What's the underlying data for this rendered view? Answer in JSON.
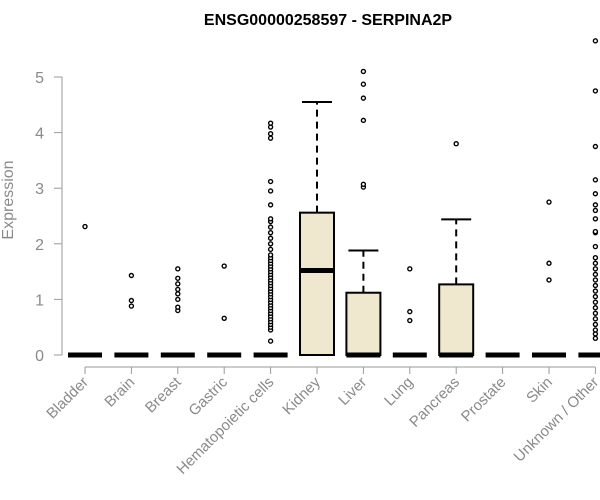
{
  "chart_data": {
    "type": "box",
    "title": "ENSG00000258597 - SERPINA2P",
    "ylabel": "Expression",
    "xlabel": "",
    "ylim": [
      0,
      5.7
    ],
    "yticks": [
      0,
      1,
      2,
      3,
      4,
      5
    ],
    "box_fill": "#efe8cf",
    "categories": [
      "Bladder",
      "Brain",
      "Breast",
      "Gastric",
      "Hematopoietic cells",
      "Kidney",
      "Liver",
      "Lung",
      "Pancreas",
      "Prostate",
      "Skin",
      "Unknown / Other"
    ],
    "boxes": [
      {
        "min": 0,
        "q1": 0,
        "median": 0,
        "q3": 0,
        "max": 0,
        "outliers": [
          2.31
        ]
      },
      {
        "min": 0,
        "q1": 0,
        "median": 0,
        "q3": 0,
        "max": 0,
        "outliers": [
          0.88,
          0.98,
          1.43
        ]
      },
      {
        "min": 0,
        "q1": 0,
        "median": 0,
        "q3": 0,
        "max": 0,
        "outliers": [
          0.8,
          0.86,
          1.0,
          1.1,
          1.18,
          1.28,
          1.38,
          1.55
        ]
      },
      {
        "min": 0,
        "q1": 0,
        "median": 0,
        "q3": 0,
        "max": 0,
        "outliers": [
          0.66,
          1.6
        ]
      },
      {
        "min": 0,
        "q1": 0,
        "median": 0,
        "q3": 0,
        "max": 0,
        "outliers": [
          0.25,
          0.45,
          0.5,
          0.55,
          0.6,
          0.65,
          0.7,
          0.75,
          0.8,
          0.85,
          0.9,
          0.95,
          1.0,
          1.05,
          1.1,
          1.15,
          1.2,
          1.25,
          1.3,
          1.35,
          1.4,
          1.45,
          1.5,
          1.55,
          1.6,
          1.65,
          1.7,
          1.75,
          1.8,
          1.9,
          2.0,
          2.1,
          2.2,
          2.3,
          2.4,
          2.45,
          2.7,
          2.95,
          3.12,
          3.9,
          3.98,
          4.1,
          4.17
        ]
      },
      {
        "min": 0,
        "q1": 0,
        "median": 1.52,
        "q3": 2.56,
        "max": 4.55,
        "outliers": []
      },
      {
        "min": 0,
        "q1": 0,
        "median": 0,
        "q3": 1.12,
        "max": 1.88,
        "outliers": [
          3.02,
          3.07,
          4.22,
          4.62,
          4.87,
          5.1
        ]
      },
      {
        "min": 0,
        "q1": 0,
        "median": 0,
        "q3": 0,
        "max": 0,
        "outliers": [
          0.62,
          0.78,
          1.55
        ]
      },
      {
        "min": 0,
        "q1": 0,
        "median": 0,
        "q3": 1.27,
        "max": 2.44,
        "outliers": [
          3.8
        ]
      },
      {
        "min": 0,
        "q1": 0,
        "median": 0,
        "q3": 0,
        "max": 0,
        "outliers": []
      },
      {
        "min": 0,
        "q1": 0,
        "median": 0,
        "q3": 0,
        "max": 0,
        "outliers": [
          1.35,
          1.65,
          2.75
        ]
      },
      {
        "min": 0,
        "q1": 0,
        "median": 0,
        "q3": 0,
        "max": 0,
        "outliers": [
          0.3,
          0.38,
          0.45,
          0.55,
          0.65,
          0.75,
          0.85,
          0.95,
          1.05,
          1.15,
          1.25,
          1.35,
          1.45,
          1.55,
          1.65,
          1.75,
          1.95,
          2.2,
          2.22,
          2.45,
          2.6,
          2.7,
          2.9,
          3.15,
          3.75,
          4.75,
          5.65
        ]
      }
    ]
  }
}
